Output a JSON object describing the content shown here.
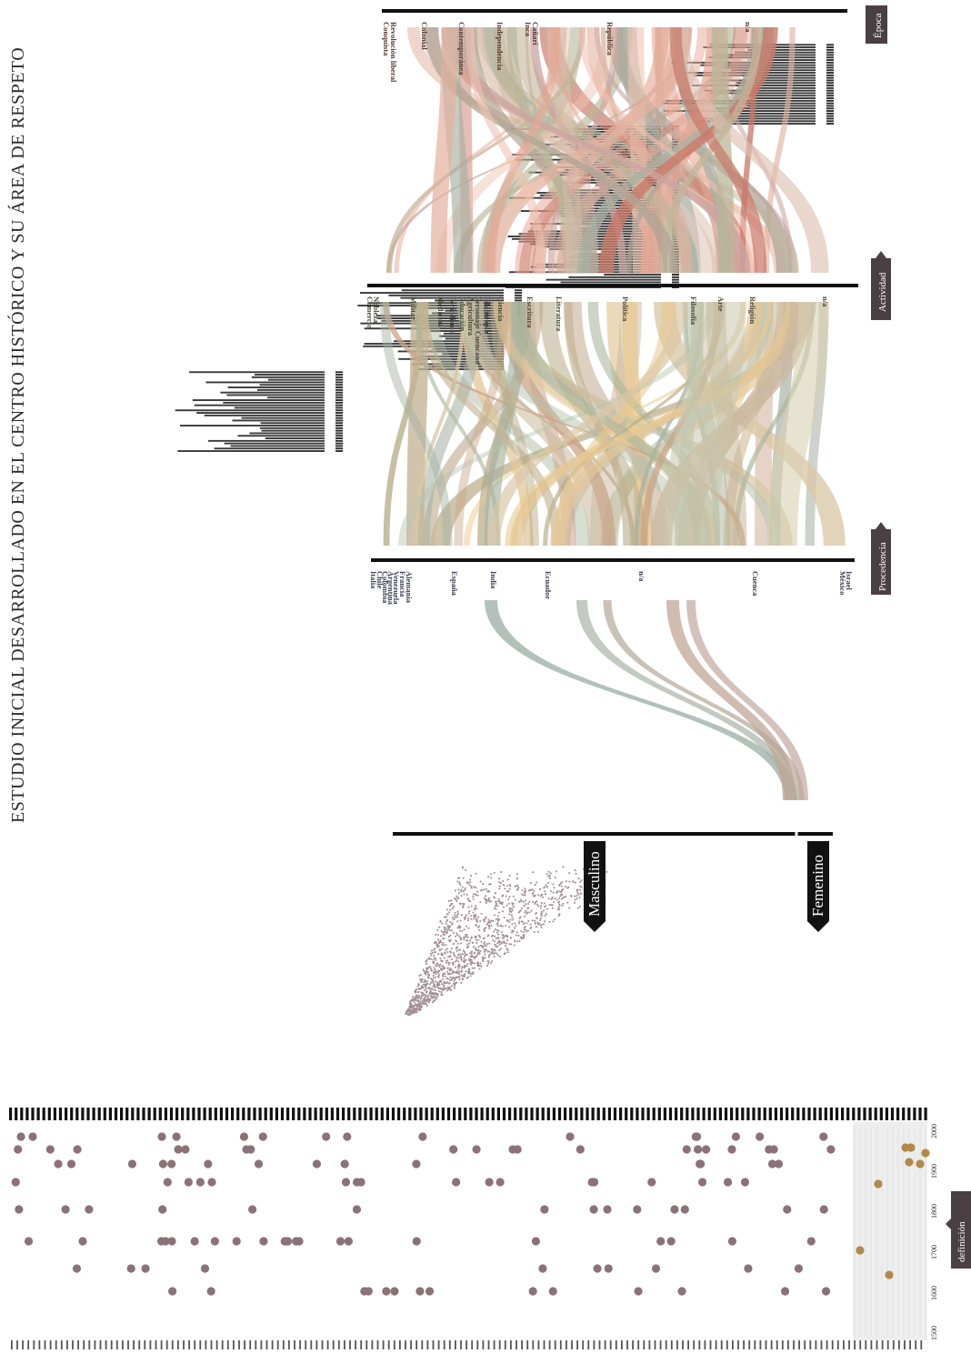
{
  "title": "ESTUDIO INICIAL DESARROLLADO EN EL CENTRO HISTÓRICO Y SU ÁREA DE RESPETO",
  "colors": {
    "ink": "#1c1c1c",
    "tag_bg": "#4a3f42",
    "masculino": "#a28f95",
    "femenino": "#a28f95",
    "dot_masc": "#8a7278",
    "dot_fem": "#b08a4a",
    "era_colonial": "#c97a6a",
    "era_republica": "#c9a4a0",
    "act_politica": "#b7aa85",
    "act_arte": "#e2c79a",
    "proc_espana": "#9aa79a",
    "proc_cuenca": "#b9a08f"
  },
  "gender": {
    "masculino": "Masculino",
    "femenino": "Femenino"
  },
  "axis_tags": {
    "procedencia": "Procedencia",
    "actividad": "Actividad",
    "epoca": "Época",
    "definicion": "definición"
  },
  "procedencia": [
    "Italia",
    "Chile",
    "Colombia",
    "Argentina",
    "Venezuela",
    "Francia",
    "Alemania",
    "España",
    "India",
    "Ecuador",
    "n/a",
    "Cuenca",
    "México",
    "Israel"
  ],
  "actividad": [
    "Comercio",
    "Nobleza",
    "Militar",
    "Medicina",
    "Periodismo",
    "Educación",
    "Agricultura",
    "Personaje Cuencano",
    "Filantropía",
    "Ciencia",
    "Escritura",
    "Literatura",
    "Política",
    "Filosofía",
    "Arte",
    "Religión",
    "n/a"
  ],
  "epoca": [
    "Conquista",
    "Revolución liberal",
    "Colonial",
    "Contemporánea",
    "Independencia",
    "Inca",
    "Cañari",
    "República",
    "n/a"
  ],
  "timeline": {
    "year_labels": [
      "1500",
      "1600",
      "1700",
      "1800",
      "1900",
      "2000"
    ]
  },
  "chart_data": {
    "type": "other",
    "title": "ESTUDIO INICIAL DESARROLLADO EN EL CENTRO HISTÓRICO Y SU ÁREA DE RESPETO",
    "dimensions": [
      "Procedencia",
      "Actividad",
      "Época"
    ],
    "gender_categories": [
      "Masculino",
      "Femenino"
    ],
    "timeline_years": [
      1500,
      1600,
      1700,
      1800,
      1900,
      2000
    ],
    "record_count": 160
  }
}
